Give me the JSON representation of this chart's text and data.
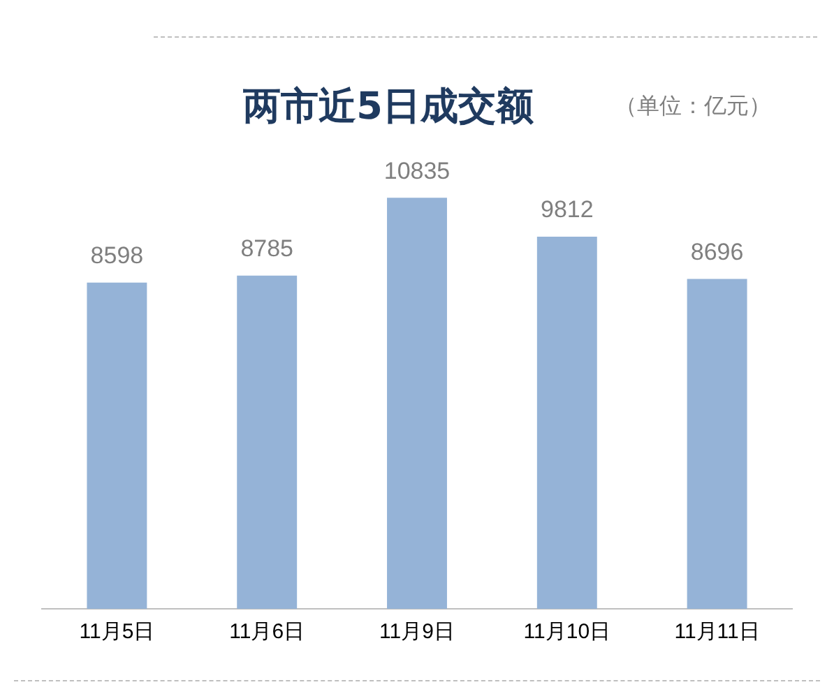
{
  "chart_data": {
    "type": "bar",
    "title": "两市近5日成交额",
    "subtitle": "（单位：亿元）",
    "categories": [
      "11月5日",
      "11月6日",
      "11月9日",
      "11月10日",
      "11月11日"
    ],
    "values": [
      8598,
      8785,
      10835,
      9812,
      8696
    ],
    "color": "#95b3d7",
    "data_labels": true,
    "grid": false,
    "legend": false
  }
}
